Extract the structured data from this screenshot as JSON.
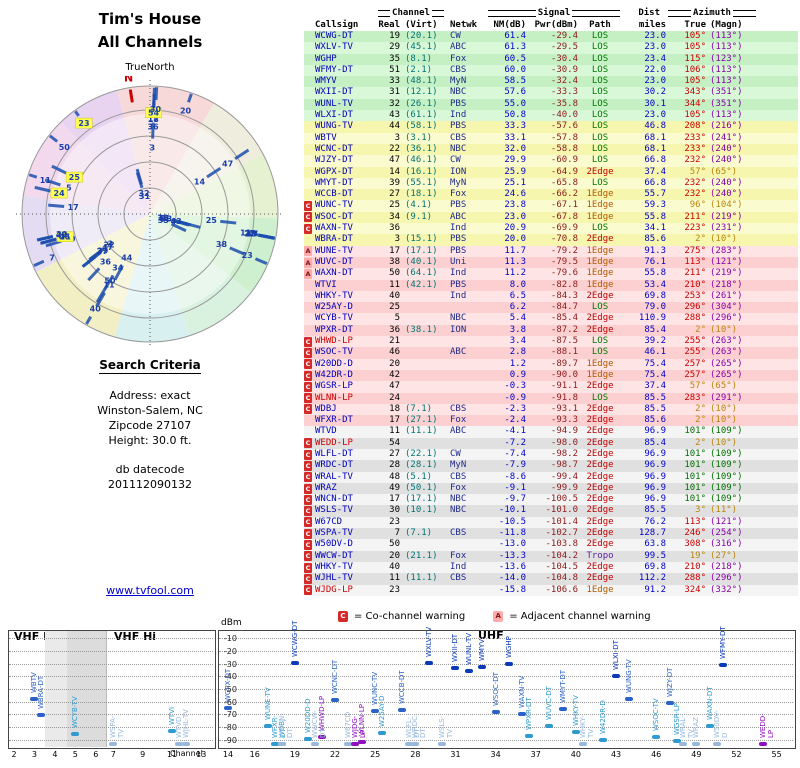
{
  "header": {
    "title_line1": "Tim's House",
    "title_line2": "All Channels",
    "north_label": "TrueNorth",
    "compass_n": "N"
  },
  "search_criteria": {
    "heading": "Search Criteria",
    "lines": [
      "Address: exact",
      "Winston-Salem, NC",
      "Zipcode 27107",
      "Height: 30.0 ft."
    ],
    "datecode_label": "db datecode",
    "datecode": "201112090132",
    "link": "www.tvfool.com"
  },
  "table": {
    "group_headers": {
      "channel": "Channel",
      "signal": "Signal",
      "dist": "Dist",
      "azimuth": "Azimuth"
    },
    "col_headers": {
      "callsign": "Callsign",
      "real": "Real",
      "virt": "(Virt)",
      "netwk": "Netwk",
      "nm": "NM(dB)",
      "pwr": "Pwr(dBm)",
      "path": "Path",
      "miles": "miles",
      "true": "True",
      "magn": "(Magn)"
    }
  },
  "legend": {
    "co_symbol": "C",
    "co_text": "= Co-channel warning",
    "adj_symbol": "A",
    "adj_text": "= Adjacent channel warning"
  },
  "bottom_chart": {
    "band_labels": [
      "VHF Lo",
      "VHF Hi",
      "UHF"
    ],
    "y_label": "dBm",
    "x_label": "Channel",
    "y_ticks": [
      -10,
      -20,
      -30,
      -40,
      -50,
      -60,
      -70,
      -80,
      -90
    ],
    "x_ticks_vhf_lo": [
      2,
      3,
      4,
      5,
      6
    ],
    "x_ticks_vhf_hi": [
      7,
      9,
      11,
      13
    ],
    "x_ticks_uhf": [
      14,
      16,
      19,
      22,
      25,
      28,
      31,
      34,
      37,
      40,
      43,
      46,
      49,
      52,
      55
    ]
  },
  "colors": {
    "path": {
      "LOS": "#007a00",
      "1Edge": "#b05a00",
      "2Edge": "#c00000",
      "Tropo": "#6020a0"
    },
    "az_true": "#cc0000",
    "az_true_warn": "#b8860b",
    "az_true_green": "#007000",
    "az_magn": "#8800aa",
    "callsign": "#0000bb",
    "callsign_red": "#cc0000",
    "tiers": {
      "green": [
        "#c4f0c4",
        "#d8f8d8"
      ],
      "yellow": [
        "#f6f6ae",
        "#fbfbd0"
      ],
      "pink": [
        "#fcd0d0",
        "#fee4e4"
      ],
      "gray": [
        "#e0e0e0",
        "#f4f4f4"
      ]
    },
    "labels": {
      "green": "#0a3ab8",
      "yellow": "#2a62c8",
      "pink": "#2e9bd0",
      "gray": "#98b8dc",
      "lp": "#9010c0"
    },
    "wedge": "#1d4fae",
    "flag_co": "#d42a2a",
    "flag_adj": "#ffaaaa",
    "highlight": "#ffff55"
  },
  "chart_data": {
    "type": "table",
    "title": "Tim's House - All Channels (TV signal analysis, Winston-Salem NC 27107)",
    "columns": [
      "Callsign",
      "Real",
      "(Virt)",
      "Netwk",
      "NM(dB)",
      "Pwr(dBm)",
      "Path",
      "Dist miles",
      "Azimuth True",
      "Azimuth (Magn)"
    ],
    "radar": {
      "rings": [
        26,
        52,
        78,
        104,
        128
      ],
      "north_azimuth": 351,
      "sectors": [
        {
          "a0": 0,
          "a1": 30,
          "c": "#f6d2d2"
        },
        {
          "a0": 30,
          "a1": 62,
          "c": "#ecead8"
        },
        {
          "a0": 62,
          "a1": 92,
          "c": "#e2efca"
        },
        {
          "a0": 92,
          "a1": 128,
          "c": "#c6edc6"
        },
        {
          "a0": 128,
          "a1": 162,
          "c": "#d2f0da"
        },
        {
          "a0": 162,
          "a1": 196,
          "c": "#d2edee"
        },
        {
          "a0": 196,
          "a1": 243,
          "c": "#f1ecba"
        },
        {
          "a0": 243,
          "a1": 278,
          "c": "#ded6f0"
        },
        {
          "a0": 278,
          "a1": 316,
          "c": "#f0d2ea"
        },
        {
          "a0": 316,
          "a1": 345,
          "c": "#e4ccee"
        },
        {
          "a0": 345,
          "a1": 360,
          "c": "#f6d2d2"
        }
      ]
    },
    "signal_plot": {
      "xlabel": "Channel",
      "ylabel": "dBm",
      "ylim": [
        -95,
        -5
      ],
      "vhf_lo_range": [
        2,
        6.5
      ],
      "vhf_hi_range": [
        6.5,
        13.8
      ],
      "uhf_range": [
        14,
        56
      ]
    },
    "stations": [
      {
        "cs": "WCWG-DT",
        "real": 19,
        "virt": "(20.1)",
        "net": "CW",
        "nm": 61.4,
        "pwr": -29.4,
        "path": "LOS",
        "mi": "23.0",
        "azt": 105,
        "azm": 113,
        "tier": "green",
        "flag": ""
      },
      {
        "cs": "WXLV-TV",
        "real": 29,
        "virt": "(45.1)",
        "net": "ABC",
        "nm": 61.3,
        "pwr": -29.5,
        "path": "LOS",
        "mi": "23.0",
        "azt": 105,
        "azm": 113,
        "tier": "green",
        "flag": ""
      },
      {
        "cs": "WGHP",
        "real": 35,
        "virt": "(8.1)",
        "net": "Fox",
        "nm": 60.5,
        "pwr": -30.4,
        "path": "LOS",
        "mi": "23.4",
        "azt": 115,
        "azm": 123,
        "tier": "green",
        "flag": ""
      },
      {
        "cs": "WFMY-DT",
        "real": 51,
        "virt": "(2.1)",
        "net": "CBS",
        "nm": 60.0,
        "pwr": -30.9,
        "path": "LOS",
        "mi": "22.0",
        "azt": 106,
        "azm": 113,
        "tier": "green",
        "flag": ""
      },
      {
        "cs": "WMYV",
        "real": 33,
        "virt": "(48.1)",
        "net": "MyN",
        "nm": 58.5,
        "pwr": -32.4,
        "path": "LOS",
        "mi": "23.0",
        "azt": 105,
        "azm": 113,
        "tier": "green",
        "flag": ""
      },
      {
        "cs": "WXII-DT",
        "real": 31,
        "virt": "(12.1)",
        "net": "NBC",
        "nm": 57.6,
        "pwr": -33.3,
        "path": "LOS",
        "mi": "30.2",
        "azt": 343,
        "azm": 351,
        "tier": "green",
        "flag": ""
      },
      {
        "cs": "WUNL-TV",
        "real": 32,
        "virt": "(26.1)",
        "net": "PBS",
        "nm": 55.0,
        "pwr": -35.8,
        "path": "LOS",
        "mi": "30.1",
        "azt": 344,
        "azm": 351,
        "tier": "green",
        "flag": ""
      },
      {
        "cs": "WLXI-DT",
        "real": 43,
        "virt": "(61.1)",
        "net": "Ind",
        "nm": 50.8,
        "pwr": -40.0,
        "path": "LOS",
        "mi": "23.0",
        "azt": 105,
        "azm": 113,
        "tier": "green",
        "flag": ""
      },
      {
        "cs": "WUNG-TV",
        "real": 44,
        "virt": "(58.1)",
        "net": "PBS",
        "nm": 33.3,
        "pwr": -57.6,
        "path": "LOS",
        "mi": "46.8",
        "azt": 208,
        "azm": 216,
        "tier": "yellow",
        "flag": ""
      },
      {
        "cs": "WBTV",
        "real": 3,
        "virt": "(3.1)",
        "net": "CBS",
        "nm": 33.1,
        "pwr": -57.8,
        "path": "LOS",
        "mi": "68.1",
        "azt": 233,
        "azm": 241,
        "tier": "yellow",
        "flag": ""
      },
      {
        "cs": "WCNC-DT",
        "real": 22,
        "virt": "(36.1)",
        "net": "NBC",
        "nm": 32.0,
        "pwr": -58.8,
        "path": "LOS",
        "mi": "68.1",
        "azt": 233,
        "azm": 240,
        "tier": "yellow",
        "flag": ""
      },
      {
        "cs": "WJZY-DT",
        "real": 47,
        "virt": "(46.1)",
        "net": "CW",
        "nm": 29.9,
        "pwr": -60.9,
        "path": "LOS",
        "mi": "66.8",
        "azt": 232,
        "azm": 240,
        "tier": "yellow",
        "flag": ""
      },
      {
        "cs": "WGPX-DT",
        "real": 14,
        "virt": "(16.1)",
        "net": "ION",
        "nm": 25.9,
        "pwr": -64.9,
        "path": "2Edge",
        "mi": "37.4",
        "azt": 57,
        "azm": 65,
        "tier": "yellow",
        "flag": "",
        "az_hl": true
      },
      {
        "cs": "WMYT-DT",
        "real": 39,
        "virt": "(55.1)",
        "net": "MyN",
        "nm": 25.1,
        "pwr": -65.8,
        "path": "LOS",
        "mi": "66.8",
        "azt": 232,
        "azm": 240,
        "tier": "yellow",
        "flag": ""
      },
      {
        "cs": "WCCB-DT",
        "real": 27,
        "virt": "(18.1)",
        "net": "Fox",
        "nm": 24.6,
        "pwr": -66.2,
        "path": "1Edge",
        "mi": "55.7",
        "azt": 232,
        "azm": 240,
        "tier": "yellow",
        "flag": ""
      },
      {
        "cs": "WUNC-TV",
        "real": 25,
        "virt": "(4.1)",
        "net": "PBS",
        "nm": 23.8,
        "pwr": -67.1,
        "path": "1Edge",
        "mi": "59.3",
        "azt": 96,
        "azm": 104,
        "tier": "yellow",
        "flag": "C",
        "az_hl": true
      },
      {
        "cs": "WSOC-DT",
        "real": 34,
        "virt": "(9.1)",
        "net": "ABC",
        "nm": 23.0,
        "pwr": -67.8,
        "path": "1Edge",
        "mi": "55.8",
        "azt": 211,
        "azm": 219,
        "tier": "yellow",
        "flag": "C"
      },
      {
        "cs": "WAXN-TV",
        "real": 36,
        "virt": "",
        "net": "Ind",
        "nm": 20.9,
        "pwr": -69.9,
        "path": "LOS",
        "mi": "34.1",
        "azt": 223,
        "azm": 231,
        "tier": "yellow",
        "flag": "C"
      },
      {
        "cs": "WBRA-DT",
        "real": 3,
        "virt": "(15.1)",
        "net": "PBS",
        "nm": 20.0,
        "pwr": -70.8,
        "path": "2Edge",
        "mi": "85.6",
        "azt": 2,
        "azm": 10,
        "tier": "yellow",
        "flag": "",
        "az_hl": true
      },
      {
        "cs": "WUNE-TV",
        "real": 17,
        "virt": "(17.1)",
        "net": "PBS",
        "nm": 11.7,
        "pwr": -79.2,
        "path": "1Edge",
        "mi": "91.3",
        "azt": 275,
        "azm": 283,
        "tier": "pink",
        "flag": "A"
      },
      {
        "cs": "WUVC-DT",
        "real": 38,
        "virt": "(40.1)",
        "net": "Uni",
        "nm": 11.3,
        "pwr": -79.5,
        "path": "1Edge",
        "mi": "76.1",
        "azt": 113,
        "azm": 121,
        "tier": "pink",
        "flag": "A"
      },
      {
        "cs": "WAXN-DT",
        "real": 50,
        "virt": "(64.1)",
        "net": "Ind",
        "nm": 11.2,
        "pwr": -79.6,
        "path": "1Edge",
        "mi": "55.8",
        "azt": 211,
        "azm": 219,
        "tier": "pink",
        "flag": "A"
      },
      {
        "cs": "WTVI",
        "real": 11,
        "virt": "(42.1)",
        "net": "PBS",
        "nm": 8.0,
        "pwr": -82.8,
        "path": "1Edge",
        "mi": "53.4",
        "azt": 210,
        "azm": 218,
        "tier": "pink",
        "flag": ""
      },
      {
        "cs": "WHKY-TV",
        "real": 40,
        "virt": "",
        "net": "Ind",
        "nm": 6.5,
        "pwr": -84.3,
        "path": "2Edge",
        "mi": "69.8",
        "azt": 253,
        "azm": 261,
        "tier": "pink",
        "flag": ""
      },
      {
        "cs": "W25AY-D",
        "real": 25,
        "virt": "",
        "net": "",
        "nm": 6.2,
        "pwr": -84.7,
        "path": "LOS",
        "mi": "79.0",
        "azt": 296,
        "azm": 304,
        "tier": "pink",
        "flag": "",
        "hl": true
      },
      {
        "cs": "WCYB-TV",
        "real": 5,
        "virt": "",
        "net": "NBC",
        "nm": 5.4,
        "pwr": -85.4,
        "path": "2Edge",
        "mi": "110.9",
        "azt": 288,
        "azm": 296,
        "tier": "pink",
        "flag": ""
      },
      {
        "cs": "WPXR-DT",
        "real": 36,
        "virt": "(38.1)",
        "net": "ION",
        "nm": 3.8,
        "pwr": -87.2,
        "path": "2Edge",
        "mi": "85.4",
        "azt": 2,
        "azm": 10,
        "tier": "pink",
        "flag": "",
        "az_hl": true
      },
      {
        "cs": "WHWD-LP",
        "real": 21,
        "virt": "",
        "net": "",
        "nm": 3.4,
        "pwr": -87.5,
        "path": "LOS",
        "mi": "39.2",
        "azt": 255,
        "azm": 263,
        "tier": "pink",
        "flag": "C",
        "cs_red": true,
        "hl": true
      },
      {
        "cs": "WSOC-TV",
        "real": 46,
        "virt": "",
        "net": "ABC",
        "nm": 2.8,
        "pwr": -88.1,
        "path": "LOS",
        "mi": "46.1",
        "azt": 255,
        "azm": 263,
        "tier": "pink",
        "flag": "C"
      },
      {
        "cs": "W20DD-D",
        "real": 20,
        "virt": "",
        "net": "",
        "nm": 1.2,
        "pwr": -89.7,
        "path": "1Edge",
        "mi": "75.4",
        "azt": 257,
        "azm": 265,
        "tier": "pink",
        "flag": "C"
      },
      {
        "cs": "W42DR-D",
        "real": 42,
        "virt": "",
        "net": "",
        "nm": 0.9,
        "pwr": -90.0,
        "path": "1Edge",
        "mi": "75.4",
        "azt": 257,
        "azm": 265,
        "tier": "pink",
        "flag": "C"
      },
      {
        "cs": "WGSR-LP",
        "real": 47,
        "virt": "",
        "net": "",
        "nm": -0.3,
        "pwr": -91.1,
        "path": "2Edge",
        "mi": "37.4",
        "azt": 57,
        "azm": 65,
        "tier": "pink",
        "flag": "C",
        "az_hl": true
      },
      {
        "cs": "WLNN-LP",
        "real": 24,
        "virt": "",
        "net": "",
        "nm": -0.9,
        "pwr": -91.8,
        "path": "LOS",
        "mi": "85.5",
        "azt": 283,
        "azm": 291,
        "tier": "pink",
        "flag": "C",
        "cs_red": true,
        "hl": true
      },
      {
        "cs": "WDBJ",
        "real": 18,
        "virt": "(7.1)",
        "net": "CBS",
        "nm": -2.3,
        "pwr": -93.1,
        "path": "2Edge",
        "mi": "85.5",
        "azt": 2,
        "azm": 10,
        "tier": "pink",
        "flag": "C",
        "az_hl": true
      },
      {
        "cs": "WFXR-DT",
        "real": 17,
        "virt": "(27.1)",
        "net": "Fox",
        "nm": -2.4,
        "pwr": -93.3,
        "path": "2Edge",
        "mi": "85.6",
        "azt": 2,
        "azm": 10,
        "tier": "pink",
        "flag": "",
        "az_hl": true
      },
      {
        "cs": "WTVD",
        "real": 11,
        "virt": "(11.1)",
        "net": "ABC",
        "nm": -4.1,
        "pwr": -94.9,
        "path": "2Edge",
        "mi": "96.9",
        "azt": 101,
        "azm": 109,
        "tier": "gray",
        "flag": "",
        "az_green": true
      },
      {
        "cs": "WEDD-LP",
        "real": 54,
        "virt": "",
        "net": "",
        "nm": -7.2,
        "pwr": -98.0,
        "path": "2Edge",
        "mi": "85.4",
        "azt": 2,
        "azm": 10,
        "tier": "gray",
        "flag": "C",
        "cs_red": true,
        "hl": true,
        "az_hl": true
      },
      {
        "cs": "WLFL-DT",
        "real": 27,
        "virt": "(22.1)",
        "net": "CW",
        "nm": -7.4,
        "pwr": -98.2,
        "path": "2Edge",
        "mi": "96.9",
        "azt": 101,
        "azm": 109,
        "tier": "gray",
        "flag": "C",
        "az_green": true
      },
      {
        "cs": "WRDC-DT",
        "real": 28,
        "virt": "(28.1)",
        "net": "MyN",
        "nm": -7.9,
        "pwr": -98.7,
        "path": "2Edge",
        "mi": "96.9",
        "azt": 101,
        "azm": 109,
        "tier": "gray",
        "flag": "C",
        "az_green": true
      },
      {
        "cs": "WRAL-TV",
        "real": 48,
        "virt": "(5.1)",
        "net": "CBS",
        "nm": -8.6,
        "pwr": -99.4,
        "path": "2Edge",
        "mi": "96.9",
        "azt": 101,
        "azm": 109,
        "tier": "gray",
        "flag": "C",
        "az_green": true
      },
      {
        "cs": "WRAZ",
        "real": 49,
        "virt": "(50.1)",
        "net": "Fox",
        "nm": -9.1,
        "pwr": -99.9,
        "path": "2Edge",
        "mi": "96.9",
        "azt": 101,
        "azm": 109,
        "tier": "gray",
        "flag": "C",
        "az_green": true
      },
      {
        "cs": "WNCN-DT",
        "real": 17,
        "virt": "(17.1)",
        "net": "NBC",
        "nm": -9.7,
        "pwr": -100.5,
        "path": "2Edge",
        "mi": "96.9",
        "azt": 101,
        "azm": 109,
        "tier": "gray",
        "flag": "C",
        "az_green": true
      },
      {
        "cs": "WSLS-TV",
        "real": 30,
        "virt": "(10.1)",
        "net": "NBC",
        "nm": -10.1,
        "pwr": -101.0,
        "path": "2Edge",
        "mi": "85.5",
        "azt": 3,
        "azm": 11,
        "tier": "gray",
        "flag": "C",
        "az_hl": true
      },
      {
        "cs": "W67CD",
        "real": 23,
        "virt": "",
        "net": "",
        "nm": -10.5,
        "pwr": -101.4,
        "path": "2Edge",
        "mi": "76.2",
        "azt": 113,
        "azm": 121,
        "tier": "gray",
        "flag": "C"
      },
      {
        "cs": "WSPA-TV",
        "real": 7,
        "virt": "(7.1)",
        "net": "CBS",
        "nm": -11.8,
        "pwr": -102.7,
        "path": "2Edge",
        "mi": "128.7",
        "azt": 246,
        "azm": 254,
        "tier": "gray",
        "flag": "C"
      },
      {
        "cs": "W50DV-D",
        "real": 50,
        "virt": "",
        "net": "",
        "nm": -13.0,
        "pwr": -103.8,
        "path": "2Edge",
        "mi": "63.8",
        "azt": 308,
        "azm": 316,
        "tier": "gray",
        "flag": "C"
      },
      {
        "cs": "WWCW-DT",
        "real": 20,
        "virt": "(21.1)",
        "net": "Fox",
        "nm": -13.3,
        "pwr": -104.2,
        "path": "Tropo",
        "mi": "99.5",
        "azt": 19,
        "azm": 27,
        "tier": "gray",
        "flag": "C",
        "az_hl": true
      },
      {
        "cs": "WHKY-TV",
        "real": 40,
        "virt": "",
        "net": "Ind",
        "nm": -13.6,
        "pwr": -104.5,
        "path": "2Edge",
        "mi": "69.8",
        "azt": 210,
        "azm": 218,
        "tier": "gray",
        "flag": "C"
      },
      {
        "cs": "WJHL-TV",
        "real": 11,
        "virt": "(11.1)",
        "net": "CBS",
        "nm": -14.0,
        "pwr": -104.8,
        "path": "2Edge",
        "mi": "112.2",
        "azt": 288,
        "azm": 296,
        "tier": "gray",
        "flag": "C"
      },
      {
        "cs": "WJDG-LP",
        "real": 23,
        "virt": "",
        "net": "",
        "nm": -15.8,
        "pwr": -106.6,
        "path": "1Edge",
        "mi": "91.2",
        "azt": 324,
        "azm": 332,
        "tier": "gray",
        "flag": "C",
        "cs_red": true,
        "hl": true
      }
    ]
  }
}
